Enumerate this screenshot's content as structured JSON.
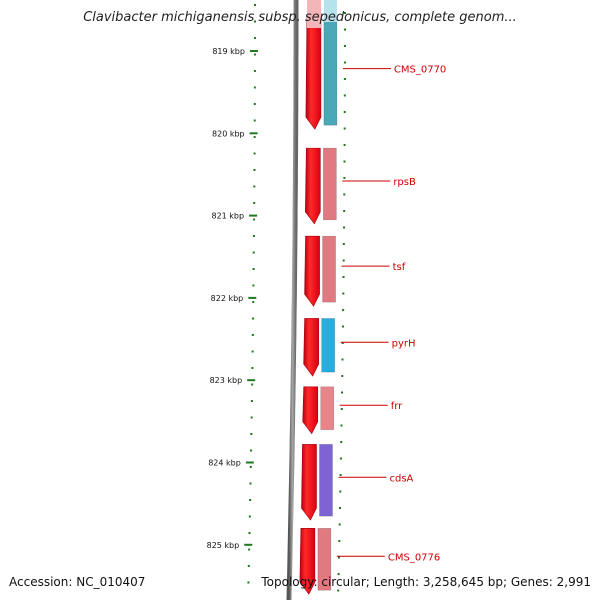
{
  "title": "Clavibacter michiganensis subsp. sepedonicus, complete genom...",
  "footer": {
    "accession": "Accession: NC_010407",
    "summary": "Topology: circular; Length: 3,258,645 bp; Genes: 2,991"
  },
  "ruler": {
    "ticks": [
      {
        "label": "819 kbp",
        "kbp": 819
      },
      {
        "label": "820 kbp",
        "kbp": 820
      },
      {
        "label": "821 kbp",
        "kbp": 821
      },
      {
        "label": "822 kbp",
        "kbp": 822
      },
      {
        "label": "823 kbp",
        "kbp": 823
      },
      {
        "label": "824 kbp",
        "kbp": 824
      },
      {
        "label": "825 kbp",
        "kbp": 825
      }
    ]
  },
  "genes": [
    {
      "name": "CMS_0770",
      "start_kbp": 818.6,
      "end_kbp": 819.95,
      "color": "#4aa8b8"
    },
    {
      "name": "rpsB",
      "start_kbp": 820.18,
      "end_kbp": 821.1,
      "color": "#e07a80"
    },
    {
      "name": "tsf",
      "start_kbp": 821.25,
      "end_kbp": 822.1,
      "color": "#e07a80"
    },
    {
      "name": "pyrH",
      "start_kbp": 822.25,
      "end_kbp": 822.95,
      "color": "#27aee0"
    },
    {
      "name": "frr",
      "start_kbp": 823.08,
      "end_kbp": 823.65,
      "color": "#e8858a"
    },
    {
      "name": "cdsA",
      "start_kbp": 823.78,
      "end_kbp": 824.7,
      "color": "#7e63d4"
    },
    {
      "name": "CMS_0776",
      "start_kbp": 824.8,
      "end_kbp": 825.6,
      "color": "#e07a80"
    }
  ],
  "colors": {
    "forward_strand": "#ee1c25",
    "backbone": "#808080",
    "tick": "#1f7a1f",
    "label": "#cc0000"
  }
}
